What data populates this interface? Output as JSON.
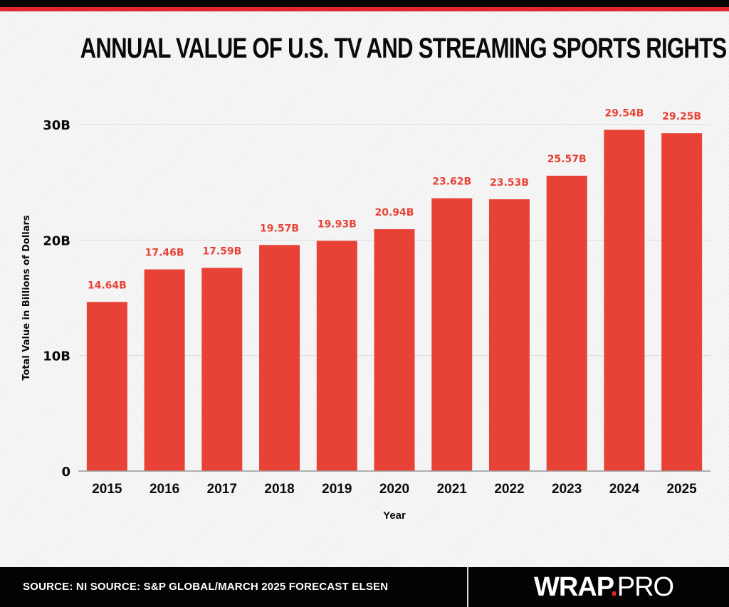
{
  "header": {
    "title": "ANNUAL VALUE OF U.S. TV AND STREAMING SPORTS RIGHTS"
  },
  "colors": {
    "bar": "#e84236",
    "data_label": "#e84236",
    "accent_red": "#e3262b",
    "top_band": "#050505",
    "footer_bg": "#030303",
    "gridline": "#dcdcdc",
    "axis_line": "#9a9a9a",
    "text": "#0a0a0a"
  },
  "footer": {
    "source": "SOURCE: NI SOURCE: S&P GLOBAL/MARCH 2025 FORECAST ELSEN",
    "logo_main": "WRAP",
    "logo_dot": ".",
    "logo_suffix": "PRO"
  },
  "chart_data": {
    "type": "bar",
    "title": "ANNUAL VALUE OF U.S. TV AND STREAMING SPORTS RIGHTS",
    "xlabel": "Year",
    "ylabel": "Total Value in Billions of Dollars",
    "categories": [
      "2015",
      "2016",
      "2017",
      "2018",
      "2019",
      "2020",
      "2021",
      "2022",
      "2023",
      "2024",
      "2025"
    ],
    "values": [
      14.64,
      17.46,
      17.59,
      19.57,
      19.93,
      20.94,
      23.62,
      23.53,
      25.57,
      29.54,
      29.25
    ],
    "data_labels": [
      "14.64B",
      "17.46B",
      "17.59B",
      "19.57B",
      "19.93B",
      "20.94B",
      "23.62B",
      "23.53B",
      "25.57B",
      "29.54B",
      "29.25B"
    ],
    "ylim": [
      0,
      30
    ],
    "yticks": [
      0,
      10,
      20,
      30
    ],
    "ytick_labels": [
      "0",
      "10B",
      "20B",
      "30B"
    ],
    "grid": true,
    "legend": "none"
  }
}
